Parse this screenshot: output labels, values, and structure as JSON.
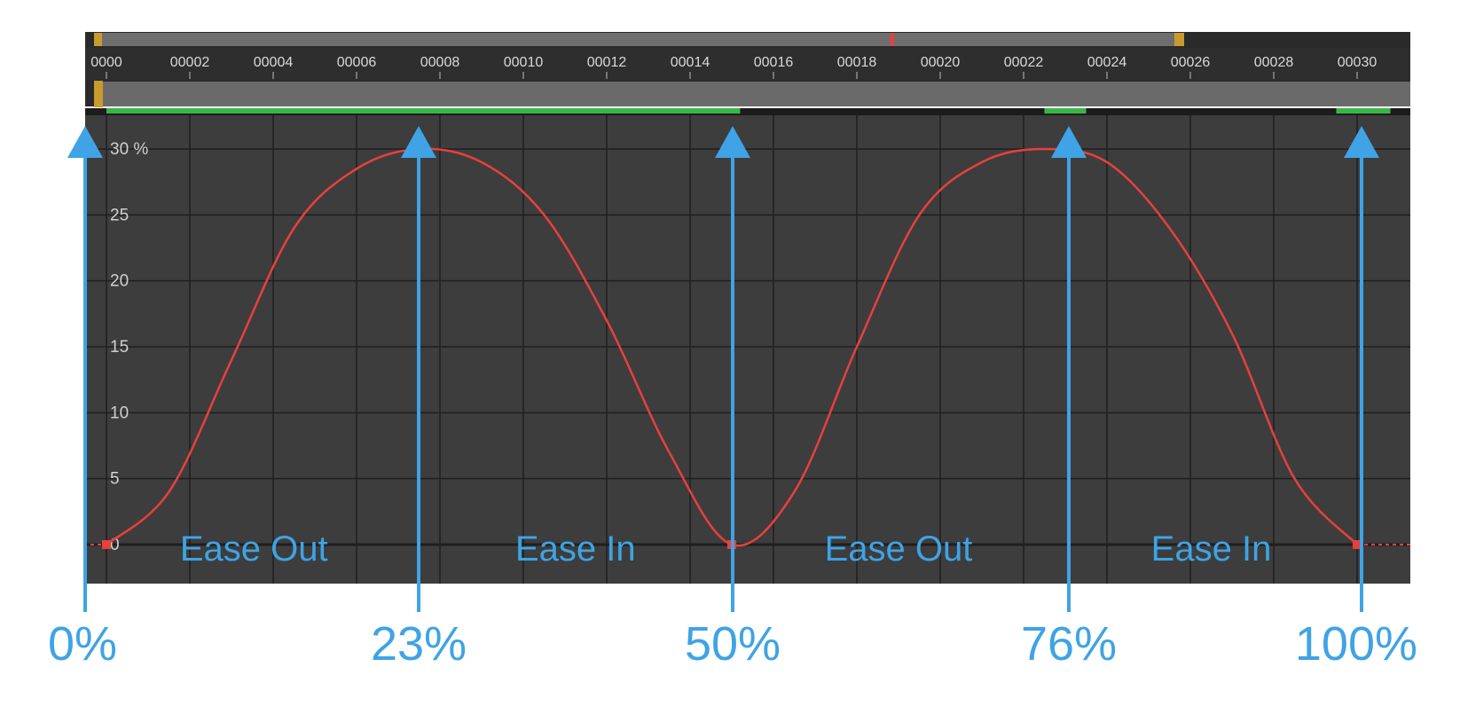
{
  "timeline": {
    "frame_labels": [
      "0000",
      "00002",
      "00004",
      "00006",
      "00008",
      "00010",
      "00012",
      "00014",
      "00016",
      "00018",
      "00020",
      "00022",
      "00024",
      "00026",
      "00028",
      "00030"
    ]
  },
  "chart_data": {
    "type": "line",
    "title": "",
    "xlabel": "",
    "ylabel": "",
    "y_ticks": [
      "30 %",
      "25",
      "20",
      "15",
      "10",
      "5",
      "0"
    ],
    "ylim": [
      0,
      30
    ],
    "xlim": [
      0,
      30
    ],
    "grid": true,
    "series": [
      {
        "color": "#e8403c",
        "x": [
          0,
          1.5,
          3,
          4.5,
          6,
          7.5,
          9,
          10.5,
          12,
          13.5,
          15,
          16.5,
          18,
          19.5,
          21,
          22.5,
          24,
          25.5,
          27,
          28.5,
          30
        ],
        "y": [
          0,
          4,
          14,
          24,
          28.5,
          30,
          29,
          25,
          17,
          7,
          0,
          4,
          15,
          25,
          29,
          30,
          29,
          24,
          16,
          5,
          0
        ]
      }
    ],
    "markers": [
      {
        "label": "0%",
        "frame": 0
      },
      {
        "label": "23%",
        "frame": 7.5
      },
      {
        "label": "50%",
        "frame": 15
      },
      {
        "label": "76%",
        "frame": 23
      },
      {
        "label": "100%",
        "frame": 30
      }
    ],
    "annotations": [
      "Ease Out",
      "Ease In",
      "Ease Out",
      "Ease In"
    ],
    "colors": {
      "panel": "#3d3d3d",
      "grid": "#1f1f1f",
      "accent_blue": "#3fa3e5",
      "green": "#3ab54a"
    }
  }
}
